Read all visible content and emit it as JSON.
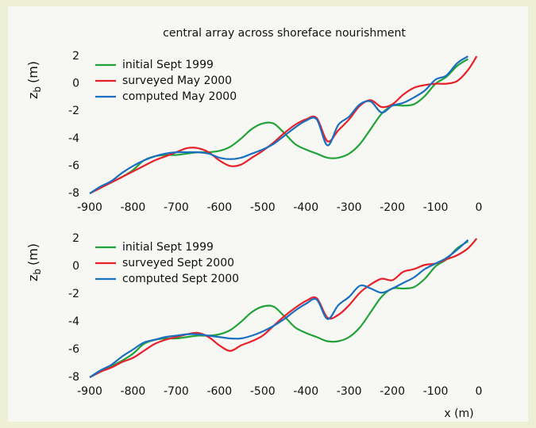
{
  "chart_data": [
    {
      "type": "line",
      "title": "central array across shoreface nourishment",
      "ylabel": {
        "symbol": "z",
        "subscript": "b",
        "unit": "(m)"
      },
      "x": [
        -900,
        -875,
        -850,
        -825,
        -800,
        -775,
        -750,
        -725,
        -700,
        -675,
        -650,
        -625,
        -600,
        -575,
        -550,
        -525,
        -500,
        -475,
        -450,
        -425,
        -400,
        -375,
        -350,
        -325,
        -300,
        -275,
        -250,
        -225,
        -200,
        -175,
        -150,
        -125,
        -100,
        -75,
        -50,
        -25,
        -5
      ],
      "series": [
        {
          "name": "initial Sept 1999",
          "color": "#22a33a",
          "values": [
            -8,
            -7.6,
            -7.2,
            -6.8,
            -6.3,
            -5.6,
            -5.3,
            -5.2,
            -5.2,
            -5.1,
            -5.0,
            -5.0,
            -4.9,
            -4.6,
            -4.0,
            -3.3,
            -2.9,
            -2.9,
            -3.6,
            -4.4,
            -4.8,
            -5.1,
            -5.4,
            -5.4,
            -5.1,
            -4.4,
            -3.3,
            -2.2,
            -1.6,
            -1.6,
            -1.5,
            -0.9,
            0,
            0.5,
            1.3,
            1.8,
            null
          ]
        },
        {
          "name": "surveyed May 2000",
          "color": "#e8202a",
          "values": [
            -8,
            -7.6,
            -7.2,
            -6.8,
            -6.4,
            -6.0,
            -5.6,
            -5.3,
            -5.0,
            -4.7,
            -4.7,
            -5.0,
            -5.6,
            -6.0,
            -5.9,
            -5.4,
            -4.9,
            -4.3,
            -3.6,
            -3.0,
            -2.6,
            -2.5,
            -4.2,
            -3.4,
            -2.6,
            -1.6,
            -1.2,
            -1.7,
            -1.5,
            -0.8,
            -0.3,
            -0.1,
            0,
            0.0,
            0.2,
            1.0,
            2.0
          ]
        },
        {
          "name": "computed May 2000",
          "color": "#1a6fc0",
          "values": [
            -8,
            -7.5,
            -7.1,
            -6.5,
            -6.0,
            -5.6,
            -5.3,
            -5.1,
            -5.0,
            -5.0,
            -5.0,
            -5.1,
            -5.4,
            -5.5,
            -5.4,
            -5.1,
            -4.8,
            -4.4,
            -3.8,
            -3.2,
            -2.7,
            -2.6,
            -4.5,
            -3.0,
            -2.4,
            -1.5,
            -1.3,
            -2.1,
            -1.6,
            -1.4,
            -1.0,
            -0.5,
            0.3,
            0.6,
            1.5,
            2.0,
            null
          ]
        }
      ],
      "xlim": [
        -900,
        0
      ],
      "xticks": [
        -900,
        -800,
        -700,
        -600,
        -500,
        -400,
        -300,
        -200,
        -100,
        0
      ],
      "ylim": [
        -8,
        2
      ],
      "yticks": [
        2,
        0,
        -2,
        -4,
        -6,
        -8
      ],
      "legend": "top-left"
    },
    {
      "type": "line",
      "xlabel": "x (m)",
      "ylabel": {
        "symbol": "z",
        "subscript": "b",
        "unit": "(m)"
      },
      "x": [
        -900,
        -875,
        -850,
        -825,
        -800,
        -775,
        -750,
        -725,
        -700,
        -675,
        -650,
        -625,
        -600,
        -575,
        -550,
        -525,
        -500,
        -475,
        -450,
        -425,
        -400,
        -375,
        -350,
        -325,
        -300,
        -275,
        -250,
        -225,
        -200,
        -175,
        -150,
        -125,
        -100,
        -75,
        -50,
        -25,
        -5
      ],
      "series": [
        {
          "name": "initial Sept 1999",
          "color": "#22a33a",
          "values": [
            -8,
            -7.6,
            -7.2,
            -6.8,
            -6.3,
            -5.6,
            -5.3,
            -5.2,
            -5.2,
            -5.1,
            -5.0,
            -5.0,
            -4.9,
            -4.6,
            -4.0,
            -3.3,
            -2.9,
            -2.9,
            -3.6,
            -4.4,
            -4.8,
            -5.1,
            -5.4,
            -5.4,
            -5.1,
            -4.4,
            -3.3,
            -2.2,
            -1.6,
            -1.6,
            -1.5,
            -0.9,
            0,
            0.5,
            1.3,
            1.8,
            null
          ]
        },
        {
          "name": "surveyed Sept 2000",
          "color": "#e8202a",
          "values": [
            -8,
            -7.6,
            -7.3,
            -6.9,
            -6.6,
            -6.1,
            -5.6,
            -5.3,
            -5.1,
            -4.9,
            -4.8,
            -5.1,
            -5.7,
            -6.1,
            -5.7,
            -5.4,
            -5.0,
            -4.3,
            -3.6,
            -3.0,
            -2.5,
            -2.3,
            -3.7,
            -3.5,
            -2.8,
            -1.9,
            -1.3,
            -0.9,
            -1.0,
            -0.4,
            -0.2,
            0.1,
            0.2,
            0.5,
            0.8,
            1.3,
            2.0
          ]
        },
        {
          "name": "computed Sept 2000",
          "color": "#1a6fc0",
          "values": [
            -8,
            -7.5,
            -7.1,
            -6.5,
            -6.0,
            -5.5,
            -5.3,
            -5.1,
            -5.0,
            -4.9,
            -4.9,
            -5.0,
            -5.1,
            -5.2,
            -5.2,
            -5.0,
            -4.7,
            -4.3,
            -3.8,
            -3.2,
            -2.7,
            -2.4,
            -3.8,
            -2.8,
            -2.2,
            -1.4,
            -1.6,
            -1.9,
            -1.6,
            -1.2,
            -0.8,
            -0.2,
            0.2,
            0.6,
            1.2,
            1.9,
            null
          ]
        }
      ],
      "xlim": [
        -900,
        0
      ],
      "xticks": [
        -900,
        -800,
        -700,
        -600,
        -500,
        -400,
        -300,
        -200,
        -100,
        0
      ],
      "ylim": [
        -8,
        2
      ],
      "yticks": [
        2,
        0,
        -2,
        -4,
        -6,
        -8
      ],
      "legend": "top-left"
    }
  ]
}
